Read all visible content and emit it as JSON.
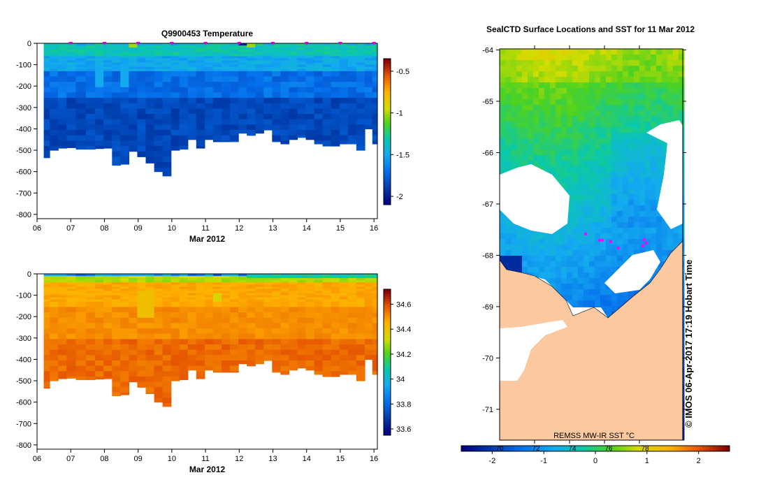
{
  "panels": {
    "temperature": {
      "title": "Q9900453  Temperature",
      "xlabel": "Mar 2012",
      "x_ticks": [
        "06",
        "07",
        "08",
        "09",
        "10",
        "11",
        "12",
        "13",
        "14",
        "15",
        "16"
      ],
      "y_ticks": [
        "0",
        "-100",
        "-200",
        "-300",
        "-400",
        "-500",
        "-600",
        "-700",
        "-800"
      ],
      "colorbar_ticks": [
        "-0.5",
        "-1",
        "-1.5",
        "-2"
      ]
    },
    "salinity": {
      "title": "",
      "xlabel": "Mar 2012",
      "x_ticks": [
        "06",
        "07",
        "08",
        "09",
        "10",
        "11",
        "12",
        "13",
        "14",
        "15",
        "16"
      ],
      "y_ticks": [
        "0",
        "-100",
        "-200",
        "-300",
        "-400",
        "-500",
        "-600",
        "-700",
        "-800"
      ],
      "colorbar_ticks": [
        "34.6",
        "34.4",
        "34.2",
        "34",
        "33.8",
        "33.6"
      ]
    },
    "map": {
      "title": "SealCTD Surface Locations and SST for 11 Mar 2012",
      "lat_ticks": [
        "-64",
        "-65",
        "-66",
        "-67",
        "-68",
        "-69",
        "-70",
        "-71"
      ],
      "source_label": "REMSS MW-IR SST °C",
      "side_label": "©  IMOS 06-Apr-2017 17:19 Hobart Time",
      "colorbar_ticks": [
        "-2",
        "-1",
        "0",
        "1",
        "2"
      ],
      "colorbar_inner_ticks": [
        "70",
        "72",
        "74",
        "76",
        "78"
      ]
    }
  },
  "chart_data": [
    {
      "type": "heatmap",
      "title": "Q9900453  Temperature",
      "xlabel": "Mar 2012",
      "ylabel": "",
      "xlim": [
        6,
        16.1
      ],
      "ylim": [
        -820,
        0
      ],
      "colorbar_range": [
        -2.1,
        -0.35
      ],
      "profile_times": [
        6.25,
        6.5,
        6.75,
        7.0,
        7.3,
        7.6,
        7.85,
        8.1,
        8.35,
        8.6,
        8.85,
        9.1,
        9.35,
        9.6,
        9.85,
        10.1,
        10.35,
        10.6,
        10.85,
        11.1,
        11.35,
        11.6,
        11.85,
        12.1,
        12.35,
        12.6,
        12.85,
        13.1,
        13.35,
        13.6,
        13.85,
        14.1,
        14.35,
        14.6,
        14.85,
        15.1,
        15.35,
        15.6,
        15.85,
        16.05
      ],
      "profile_max_depths": [
        -535,
        -500,
        -490,
        -488,
        -495,
        -495,
        -492,
        -490,
        -570,
        -565,
        -505,
        -530,
        -560,
        -600,
        -620,
        -500,
        -495,
        -450,
        -490,
        -450,
        -460,
        -460,
        -460,
        -420,
        -430,
        -420,
        -405,
        -460,
        -470,
        -450,
        -440,
        -450,
        -470,
        -480,
        -480,
        -470,
        -470,
        -500,
        -400,
        -470
      ],
      "surface_position_markers_days": [
        7,
        8,
        9,
        10,
        11,
        12,
        13,
        14,
        15,
        16
      ]
    },
    {
      "type": "heatmap",
      "title": "",
      "xlabel": "Mar 2012",
      "ylabel": "",
      "xlim": [
        6,
        16.1
      ],
      "ylim": [
        -820,
        0
      ],
      "colorbar_range": [
        33.55,
        34.72
      ],
      "profile_times": [
        6.25,
        6.5,
        6.75,
        7.0,
        7.3,
        7.6,
        7.85,
        8.1,
        8.35,
        8.6,
        8.85,
        9.1,
        9.35,
        9.6,
        9.85,
        10.1,
        10.35,
        10.6,
        10.85,
        11.1,
        11.35,
        11.6,
        11.85,
        12.1,
        12.35,
        12.6,
        12.85,
        13.1,
        13.35,
        13.6,
        13.85,
        14.1,
        14.35,
        14.6,
        14.85,
        15.1,
        15.35,
        15.6,
        15.85,
        16.05
      ],
      "profile_max_depths": [
        -535,
        -500,
        -490,
        -488,
        -495,
        -495,
        -492,
        -490,
        -570,
        -565,
        -505,
        -530,
        -560,
        -600,
        -620,
        -500,
        -495,
        -450,
        -490,
        -450,
        -460,
        -460,
        -460,
        -420,
        -430,
        -420,
        -405,
        -460,
        -470,
        -450,
        -440,
        -450,
        -470,
        -480,
        -480,
        -470,
        -470,
        -500,
        -400,
        -470
      ]
    },
    {
      "type": "heatmap",
      "title": "SealCTD Surface Locations and SST for 11 Mar 2012",
      "ylabel": "",
      "ylim": [
        -71.6,
        -63.98
      ],
      "lat_ticks": [
        -64,
        -65,
        -66,
        -67,
        -68,
        -69,
        -70,
        -71
      ],
      "colorbar_range": [
        -2.6,
        2.6
      ],
      "colorbar_ticks": [
        -2,
        -1,
        0,
        1,
        2
      ],
      "seal_locations_note": "magenta markers near -67.7 to -68.0"
    }
  ]
}
